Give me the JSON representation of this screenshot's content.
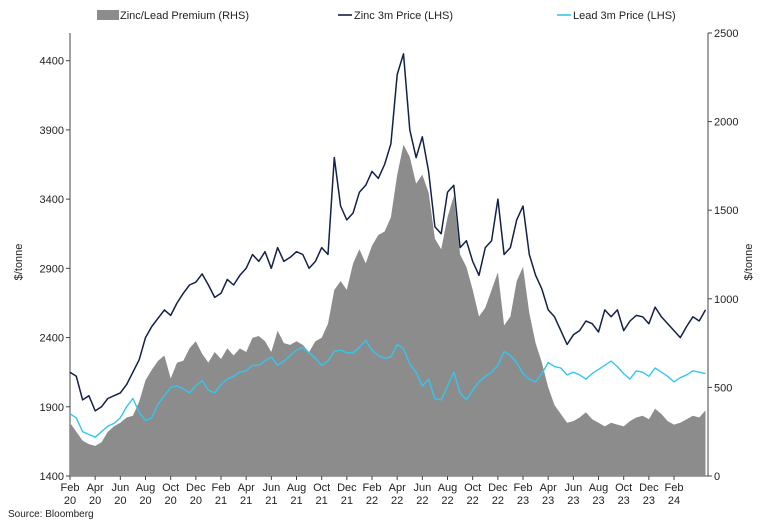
{
  "chart_data": {
    "type": "line",
    "legend": [
      {
        "name": "Zinc/Lead Premium (RHS)",
        "kind": "area",
        "color": "#8c8c8c"
      },
      {
        "name": "Zinc 3m Price (LHS)",
        "kind": "line",
        "color": "#13214a"
      },
      {
        "name": "Lead 3m Price (LHS)",
        "kind": "line",
        "color": "#33c6ee"
      }
    ],
    "legend_position": "top",
    "ylabel_left": "$/tonne",
    "ylabel_right": "$/tonne",
    "ylim_left": [
      1400,
      4600
    ],
    "ylim_right": [
      0,
      2500
    ],
    "yticks_left": [
      "1400",
      "1900",
      "2400",
      "2900",
      "3400",
      "3900",
      "4400"
    ],
    "yticks_right": [
      "0",
      "500",
      "1000",
      "1500",
      "2000",
      "2500"
    ],
    "xticks": [
      {
        "month": "Feb",
        "year": "20"
      },
      {
        "month": "Apr",
        "year": "20"
      },
      {
        "month": "Jun",
        "year": "20"
      },
      {
        "month": "Aug",
        "year": "20"
      },
      {
        "month": "Oct",
        "year": "20"
      },
      {
        "month": "Dec",
        "year": "20"
      },
      {
        "month": "Feb",
        "year": "21"
      },
      {
        "month": "Apr",
        "year": "21"
      },
      {
        "month": "Jun",
        "year": "21"
      },
      {
        "month": "Aug",
        "year": "21"
      },
      {
        "month": "Oct",
        "year": "21"
      },
      {
        "month": "Dec",
        "year": "21"
      },
      {
        "month": "Feb",
        "year": "22"
      },
      {
        "month": "Apr",
        "year": "22"
      },
      {
        "month": "Jun",
        "year": "22"
      },
      {
        "month": "Aug",
        "year": "22"
      },
      {
        "month": "Oct",
        "year": "22"
      },
      {
        "month": "Dec",
        "year": "22"
      },
      {
        "month": "Feb",
        "year": "23"
      },
      {
        "month": "Apr",
        "year": "23"
      },
      {
        "month": "Jun",
        "year": "23"
      },
      {
        "month": "Aug",
        "year": "23"
      },
      {
        "month": "Oct",
        "year": "23"
      },
      {
        "month": "Dec",
        "year": "23"
      },
      {
        "month": "Feb",
        "year": "24"
      }
    ],
    "x_months": [
      0,
      0.5,
      1,
      1.5,
      2,
      2.5,
      3,
      3.5,
      4,
      4.5,
      5,
      5.5,
      6,
      6.5,
      7,
      7.5,
      8,
      8.5,
      9,
      9.5,
      10,
      10.5,
      11,
      11.5,
      12,
      12.5,
      13,
      13.5,
      14,
      14.5,
      15,
      15.5,
      16,
      16.5,
      17,
      17.5,
      18,
      18.5,
      19,
      19.5,
      20,
      20.5,
      21,
      21.5,
      22,
      22.5,
      23,
      23.5,
      24,
      24.5,
      25,
      25.5,
      26,
      26.5,
      27,
      27.5,
      28,
      28.5,
      29,
      29.5,
      30,
      30.5,
      31,
      31.5,
      32,
      32.5,
      33,
      33.5,
      34,
      34.5,
      35,
      35.5,
      36,
      36.5,
      37,
      37.5,
      38,
      38.5,
      39,
      39.5,
      40,
      40.5,
      41,
      41.5,
      42,
      42.5,
      43,
      43.5,
      44,
      44.5,
      45,
      45.5,
      46,
      46.5,
      47,
      47.5,
      48,
      48.5,
      49,
      49.5,
      50,
      50.5
    ],
    "series": [
      {
        "name": "Zinc 3m Price (LHS)",
        "axis": "left",
        "values": [
          2150,
          2120,
          1950,
          1980,
          1870,
          1900,
          1960,
          1980,
          2000,
          2060,
          2150,
          2240,
          2400,
          2480,
          2540,
          2600,
          2560,
          2650,
          2720,
          2780,
          2800,
          2860,
          2780,
          2690,
          2720,
          2820,
          2780,
          2850,
          2900,
          3000,
          2950,
          3020,
          2900,
          3050,
          2950,
          2980,
          3020,
          3000,
          2900,
          2950,
          3050,
          3000,
          3700,
          3350,
          3250,
          3300,
          3450,
          3500,
          3600,
          3550,
          3650,
          3800,
          4300,
          4450,
          3900,
          3700,
          3850,
          3600,
          3200,
          3150,
          3450,
          3500,
          3050,
          3100,
          2950,
          2850,
          3050,
          3100,
          3400,
          3000,
          3050,
          3250,
          3350,
          3000,
          2850,
          2750,
          2600,
          2550,
          2450,
          2350,
          2420,
          2450,
          2520,
          2500,
          2440,
          2600,
          2550,
          2600,
          2450,
          2520,
          2560,
          2550,
          2500,
          2620,
          2550,
          2500,
          2450,
          2400,
          2480,
          2550,
          2520,
          2600
        ]
      },
      {
        "name": "Lead 3m Price (LHS)",
        "axis": "left",
        "values": [
          1850,
          1820,
          1720,
          1700,
          1680,
          1720,
          1760,
          1780,
          1820,
          1900,
          1960,
          1860,
          1800,
          1820,
          1920,
          1980,
          2040,
          2050,
          2030,
          2000,
          2050,
          2090,
          2020,
          2000,
          2060,
          2100,
          2120,
          2150,
          2160,
          2200,
          2200,
          2230,
          2260,
          2200,
          2230,
          2270,
          2310,
          2330,
          2290,
          2250,
          2200,
          2230,
          2300,
          2310,
          2290,
          2290,
          2330,
          2380,
          2310,
          2270,
          2250,
          2260,
          2350,
          2320,
          2210,
          2150,
          2050,
          2100,
          1960,
          1950,
          2050,
          2150,
          2000,
          1950,
          2020,
          2080,
          2120,
          2150,
          2200,
          2300,
          2270,
          2220,
          2140,
          2100,
          2080,
          2140,
          2220,
          2190,
          2180,
          2130,
          2150,
          2130,
          2100,
          2140,
          2170,
          2200,
          2230,
          2190,
          2140,
          2100,
          2160,
          2150,
          2120,
          2180,
          2150,
          2120,
          2080,
          2110,
          2130,
          2160,
          2150,
          2140
        ]
      },
      {
        "name": "Zinc/Lead Premium (RHS)",
        "axis": "right",
        "values": [
          300,
          250,
          200,
          180,
          170,
          190,
          250,
          280,
          300,
          330,
          340,
          420,
          540,
          600,
          650,
          680,
          550,
          640,
          650,
          720,
          760,
          690,
          640,
          700,
          660,
          720,
          680,
          720,
          700,
          780,
          790,
          760,
          700,
          820,
          750,
          740,
          760,
          740,
          700,
          760,
          780,
          860,
          1050,
          1100,
          1050,
          1200,
          1280,
          1200,
          1300,
          1360,
          1380,
          1460,
          1700,
          1870,
          1800,
          1650,
          1700,
          1600,
          1340,
          1280,
          1460,
          1580,
          1250,
          1180,
          1050,
          900,
          950,
          1050,
          1150,
          850,
          900,
          1100,
          1180,
          920,
          750,
          640,
          500,
          400,
          350,
          300,
          310,
          330,
          360,
          320,
          300,
          280,
          300,
          290,
          280,
          310,
          330,
          340,
          320,
          380,
          350,
          310,
          290,
          300,
          320,
          340,
          330,
          370
        ]
      }
    ]
  },
  "source": "Source: Bloomberg"
}
